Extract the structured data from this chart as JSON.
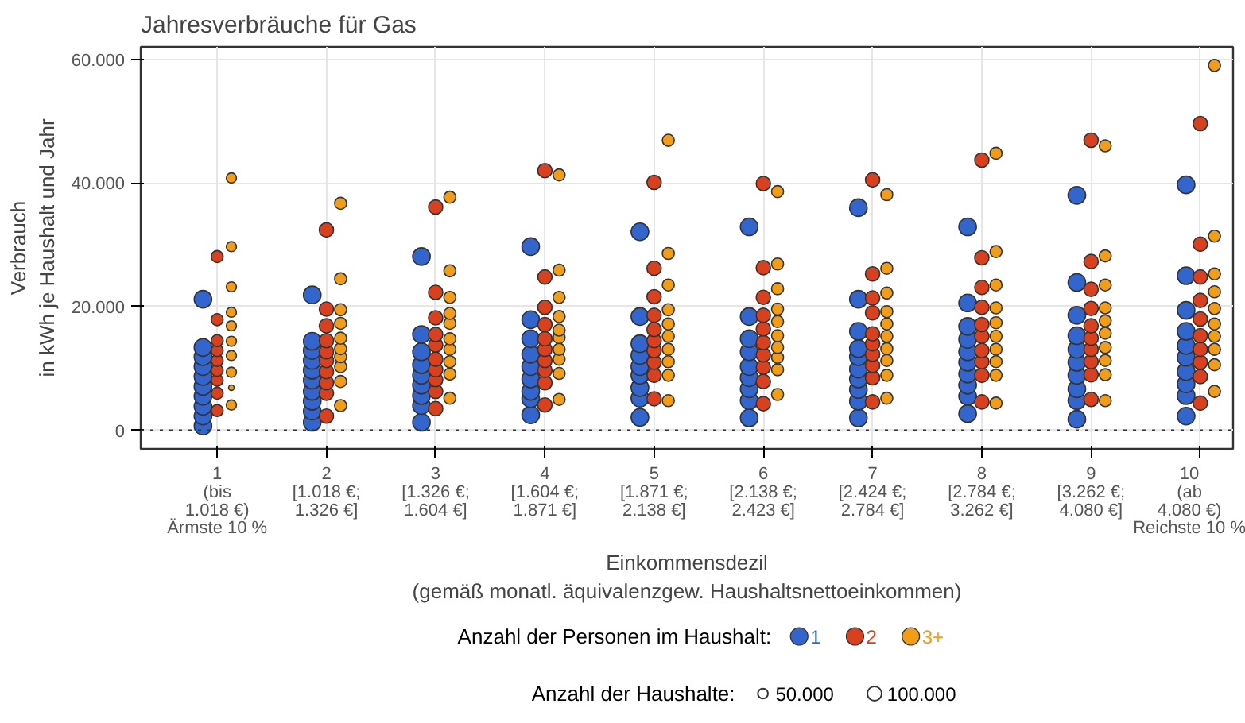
{
  "chart_data": {
    "type": "bubble",
    "title": "Jahresverbräuche für Gas",
    "xlabel": "Einkommensdezil\n(gemäß monatl. äquivalenzgew. Haushaltsnettoeinkommen)",
    "ylabel": "Verbrauch\nin kWh je Haushalt und Jahr",
    "legend_title": "Anzahl der Personen im Haushalt:",
    "annotations": [
      "Anzahl der Haushalte:"
    ],
    "categories": [
      "1\n(bis\n1.018 €)\nÄrmste 10 %",
      "2\n[1.018 €;\n1.326 €]",
      "3\n[1.326 €;\n1.604 €]",
      "4\n[1.604 €;\n1.871 €]",
      "5\n[1.871 €;\n2.138 €]",
      "6\n[2.138 €;\n2.423 €]",
      "7\n[2.424 €;\n2.784 €]",
      "8\n[2.784 €;\n3.262 €]",
      "9\n[3.262 €;\n4.080 €]",
      "10\n(ab\n4.080 €)\nReichste 10 %"
    ],
    "ylim": [
      -3000,
      62000
    ],
    "yticks": [
      0,
      {
        "value": 20000,
        "label": "20.000"
      },
      {
        "value": 40000,
        "label": "40.000"
      },
      {
        "value": 60000,
        "label": "60.000"
      }
    ],
    "grid": true,
    "legend": "bottom",
    "ref_lines": [
      {
        "axis": "y",
        "value": 0,
        "color": "#333333",
        "line_style": "dotted"
      }
    ],
    "size_legend": [
      {
        "value": 50000,
        "label": "50.000"
      },
      {
        "value": 100000,
        "label": "100.000"
      }
    ],
    "series": [
      {
        "name": "1",
        "color": "#3366cc",
        "x": [
          "1\n(bis\n1.018 €)\nÄrmste 10 %",
          "1\n(bis\n1.018 €)\nÄrmste 10 %",
          "1\n(bis\n1.018 €)\nÄrmste 10 %",
          "1\n(bis\n1.018 €)\nÄrmste 10 %",
          "1\n(bis\n1.018 €)\nÄrmste 10 %",
          "1\n(bis\n1.018 €)\nÄrmste 10 %",
          "1\n(bis\n1.018 €)\nÄrmste 10 %",
          "1\n(bis\n1.018 €)\nÄrmste 10 %",
          "1\n(bis\n1.018 €)\nÄrmste 10 %",
          "1\n(bis\n1.018 €)\nÄrmste 10 %",
          "2\n[1.018 €;\n1.326 €]",
          "2\n[1.018 €;\n1.326 €]",
          "2\n[1.018 €;\n1.326 €]",
          "2\n[1.018 €;\n1.326 €]",
          "2\n[1.018 €;\n1.326 €]",
          "2\n[1.018 €;\n1.326 €]",
          "2\n[1.018 €;\n1.326 €]",
          "2\n[1.018 €;\n1.326 €]",
          "2\n[1.018 €;\n1.326 €]",
          "2\n[1.018 €;\n1.326 €]",
          "3\n[1.326 €;\n1.604 €]",
          "3\n[1.326 €;\n1.604 €]",
          "3\n[1.326 €;\n1.604 €]",
          "3\n[1.326 €;\n1.604 €]",
          "3\n[1.326 €;\n1.604 €]",
          "3\n[1.326 €;\n1.604 €]",
          "3\n[1.326 €;\n1.604 €]",
          "3\n[1.326 €;\n1.604 €]",
          "3\n[1.326 €;\n1.604 €]",
          "4\n[1.604 €;\n1.871 €]",
          "4\n[1.604 €;\n1.871 €]",
          "4\n[1.604 €;\n1.871 €]",
          "4\n[1.604 €;\n1.871 €]",
          "4\n[1.604 €;\n1.871 €]",
          "4\n[1.604 €;\n1.871 €]",
          "4\n[1.604 €;\n1.871 €]",
          "4\n[1.604 €;\n1.871 €]",
          "4\n[1.604 €;\n1.871 €]",
          "5\n[1.871 €;\n2.138 €]",
          "5\n[1.871 €;\n2.138 €]",
          "5\n[1.871 €;\n2.138 €]",
          "5\n[1.871 €;\n2.138 €]",
          "5\n[1.871 €;\n2.138 €]",
          "5\n[1.871 €;\n2.138 €]",
          "5\n[1.871 €;\n2.138 €]",
          "5\n[1.871 €;\n2.138 €]",
          "5\n[1.871 €;\n2.138 €]",
          "6\n[2.138 €;\n2.423 €]",
          "6\n[2.138 €;\n2.423 €]",
          "6\n[2.138 €;\n2.423 €]",
          "6\n[2.138 €;\n2.423 €]",
          "6\n[2.138 €;\n2.423 €]",
          "6\n[2.138 €;\n2.423 €]",
          "6\n[2.138 €;\n2.423 €]",
          "6\n[2.138 €;\n2.423 €]",
          "6\n[2.138 €;\n2.423 €]",
          "7\n[2.424 €;\n2.784 €]",
          "7\n[2.424 €;\n2.784 €]",
          "7\n[2.424 €;\n2.784 €]",
          "7\n[2.424 €;\n2.784 €]",
          "7\n[2.424 €;\n2.784 €]",
          "7\n[2.424 €;\n2.784 €]",
          "7\n[2.424 €;\n2.784 €]",
          "7\n[2.424 €;\n2.784 €]",
          "7\n[2.424 €;\n2.784 €]",
          "7\n[2.424 €;\n2.784 €]",
          "8\n[2.784 €;\n3.262 €]",
          "8\n[2.784 €;\n3.262 €]",
          "8\n[2.784 €;\n3.262 €]",
          "8\n[2.784 €;\n3.262 €]",
          "8\n[2.784 €;\n3.262 €]",
          "8\n[2.784 €;\n3.262 €]",
          "8\n[2.784 €;\n3.262 €]",
          "8\n[2.784 €;\n3.262 €]",
          "8\n[2.784 €;\n3.262 €]",
          "8\n[2.784 €;\n3.262 €]",
          "9\n[3.262 €;\n4.080 €]",
          "9\n[3.262 €;\n4.080 €]",
          "9\n[3.262 €;\n4.080 €]",
          "9\n[3.262 €;\n4.080 €]",
          "9\n[3.262 €;\n4.080 €]",
          "9\n[3.262 €;\n4.080 €]",
          "9\n[3.262 €;\n4.080 €]",
          "9\n[3.262 €;\n4.080 €]",
          "9\n[3.262 €;\n4.080 €]",
          "9\n[3.262 €;\n4.080 €]",
          "10\n(ab\n4.080 €)\nReichste 10 %",
          "10\n(ab\n4.080 €)\nReichste 10 %",
          "10\n(ab\n4.080 €)\nReichste 10 %",
          "10\n(ab\n4.080 €)\nReichste 10 %",
          "10\n(ab\n4.080 €)\nReichste 10 %",
          "10\n(ab\n4.080 €)\nReichste 10 %",
          "10\n(ab\n4.080 €)\nReichste 10 %",
          "10\n(ab\n4.080 €)\nReichste 10 %",
          "10\n(ab\n4.080 €)\nReichste 10 %",
          "10\n(ab\n4.080 €)\nReichste 10 %"
        ],
        "values": [
          700,
          2300,
          3900,
          5500,
          7100,
          8700,
          10300,
          11900,
          13400,
          21200,
          1300,
          3100,
          4700,
          6300,
          8100,
          9700,
          11300,
          12900,
          14400,
          21900,
          1300,
          4000,
          5600,
          7300,
          8900,
          10600,
          12700,
          15500,
          28100,
          2500,
          5100,
          6300,
          8300,
          10300,
          12300,
          14800,
          17900,
          29700,
          2100,
          5200,
          6900,
          8900,
          10300,
          12100,
          14000,
          18400,
          32100,
          2000,
          4800,
          6700,
          8500,
          10300,
          12700,
          14800,
          18400,
          32900,
          2000,
          4700,
          6600,
          8300,
          9900,
          11900,
          13200,
          16000,
          21200,
          36000,
          2700,
          5500,
          7300,
          9100,
          11000,
          12700,
          14700,
          16800,
          20600,
          32900,
          1800,
          4800,
          6700,
          8900,
          11000,
          13100,
          15300,
          18600,
          23900,
          38000,
          2300,
          5600,
          7500,
          9500,
          11800,
          13700,
          16000,
          19400,
          25000,
          39700
        ],
        "sizes": [
          150000,
          150000,
          150000,
          150000,
          150000,
          150000,
          150000,
          150000,
          150000,
          150000,
          150000,
          150000,
          150000,
          150000,
          150000,
          150000,
          150000,
          150000,
          150000,
          150000,
          150000,
          150000,
          150000,
          150000,
          150000,
          150000,
          150000,
          150000,
          150000,
          150000,
          150000,
          150000,
          150000,
          150000,
          150000,
          150000,
          150000,
          150000,
          150000,
          150000,
          150000,
          150000,
          150000,
          150000,
          150000,
          150000,
          150000,
          150000,
          150000,
          150000,
          150000,
          150000,
          150000,
          150000,
          150000,
          150000,
          150000,
          150000,
          150000,
          150000,
          150000,
          150000,
          150000,
          150000,
          150000,
          150000,
          150000,
          150000,
          150000,
          150000,
          150000,
          150000,
          150000,
          150000,
          150000,
          150000,
          150000,
          150000,
          150000,
          150000,
          150000,
          150000,
          150000,
          150000,
          150000,
          150000,
          150000,
          150000,
          150000,
          150000,
          150000,
          150000,
          150000,
          150000,
          150000,
          150000
        ]
      },
      {
        "name": "2",
        "color": "#d9411e",
        "x": [
          "1\n(bis\n1.018 €)\nÄrmste 10 %",
          "1\n(bis\n1.018 €)\nÄrmste 10 %",
          "1\n(bis\n1.018 €)\nÄrmste 10 %",
          "1\n(bis\n1.018 €)\nÄrmste 10 %",
          "1\n(bis\n1.018 €)\nÄrmste 10 %",
          "1\n(bis\n1.018 €)\nÄrmste 10 %",
          "1\n(bis\n1.018 €)\nÄrmste 10 %",
          "1\n(bis\n1.018 €)\nÄrmste 10 %",
          "1\n(bis\n1.018 €)\nÄrmste 10 %",
          "2\n[1.018 €;\n1.326 €]",
          "2\n[1.018 €;\n1.326 €]",
          "2\n[1.018 €;\n1.326 €]",
          "2\n[1.018 €;\n1.326 €]",
          "2\n[1.018 €;\n1.326 €]",
          "2\n[1.018 €;\n1.326 €]",
          "2\n[1.018 €;\n1.326 €]",
          "2\n[1.018 €;\n1.326 €]",
          "2\n[1.018 €;\n1.326 €]",
          "2\n[1.018 €;\n1.326 €]",
          "3\n[1.326 €;\n1.604 €]",
          "3\n[1.326 €;\n1.604 €]",
          "3\n[1.326 €;\n1.604 €]",
          "3\n[1.326 €;\n1.604 €]",
          "3\n[1.326 €;\n1.604 €]",
          "3\n[1.326 €;\n1.604 €]",
          "3\n[1.326 €;\n1.604 €]",
          "3\n[1.326 €;\n1.604 €]",
          "3\n[1.326 €;\n1.604 €]",
          "3\n[1.326 €;\n1.604 €]",
          "4\n[1.604 €;\n1.871 €]",
          "4\n[1.604 €;\n1.871 €]",
          "4\n[1.604 €;\n1.871 €]",
          "4\n[1.604 €;\n1.871 €]",
          "4\n[1.604 €;\n1.871 €]",
          "4\n[1.604 €;\n1.871 €]",
          "4\n[1.604 €;\n1.871 €]",
          "4\n[1.604 €;\n1.871 €]",
          "4\n[1.604 €;\n1.871 €]",
          "4\n[1.604 €;\n1.871 €]",
          "5\n[1.871 €;\n2.138 €]",
          "5\n[1.871 €;\n2.138 €]",
          "5\n[1.871 €;\n2.138 €]",
          "5\n[1.871 €;\n2.138 €]",
          "5\n[1.871 €;\n2.138 €]",
          "5\n[1.871 €;\n2.138 €]",
          "5\n[1.871 €;\n2.138 €]",
          "5\n[1.871 €;\n2.138 €]",
          "5\n[1.871 €;\n2.138 €]",
          "5\n[1.871 €;\n2.138 €]",
          "6\n[2.138 €;\n2.423 €]",
          "6\n[2.138 €;\n2.423 €]",
          "6\n[2.138 €;\n2.423 €]",
          "6\n[2.138 €;\n2.423 €]",
          "6\n[2.138 €;\n2.423 €]",
          "6\n[2.138 €;\n2.423 €]",
          "6\n[2.138 €;\n2.423 €]",
          "6\n[2.138 €;\n2.423 €]",
          "6\n[2.138 €;\n2.423 €]",
          "6\n[2.138 €;\n2.423 €]",
          "7\n[2.424 €;\n2.784 €]",
          "7\n[2.424 €;\n2.784 €]",
          "7\n[2.424 €;\n2.784 €]",
          "7\n[2.424 €;\n2.784 €]",
          "7\n[2.424 €;\n2.784 €]",
          "7\n[2.424 €;\n2.784 €]",
          "7\n[2.424 €;\n2.784 €]",
          "7\n[2.424 €;\n2.784 €]",
          "7\n[2.424 €;\n2.784 €]",
          "7\n[2.424 €;\n2.784 €]",
          "8\n[2.784 €;\n3.262 €]",
          "8\n[2.784 €;\n3.262 €]",
          "8\n[2.784 €;\n3.262 €]",
          "8\n[2.784 €;\n3.262 €]",
          "8\n[2.784 €;\n3.262 €]",
          "8\n[2.784 €;\n3.262 €]",
          "8\n[2.784 €;\n3.262 €]",
          "8\n[2.784 €;\n3.262 €]",
          "8\n[2.784 €;\n3.262 €]",
          "8\n[2.784 €;\n3.262 €]",
          "9\n[3.262 €;\n4.080 €]",
          "9\n[3.262 €;\n4.080 €]",
          "9\n[3.262 €;\n4.080 €]",
          "9\n[3.262 €;\n4.080 €]",
          "9\n[3.262 €;\n4.080 €]",
          "9\n[3.262 €;\n4.080 €]",
          "9\n[3.262 €;\n4.080 €]",
          "9\n[3.262 €;\n4.080 €]",
          "9\n[3.262 €;\n4.080 €]",
          "9\n[3.262 €;\n4.080 €]",
          "10\n(ab\n4.080 €)\nReichste 10 %",
          "10\n(ab\n4.080 €)\nReichste 10 %",
          "10\n(ab\n4.080 €)\nReichste 10 %",
          "10\n(ab\n4.080 €)\nReichste 10 %",
          "10\n(ab\n4.080 €)\nReichste 10 %",
          "10\n(ab\n4.080 €)\nReichste 10 %",
          "10\n(ab\n4.080 €)\nReichste 10 %",
          "10\n(ab\n4.080 €)\nReichste 10 %",
          "10\n(ab\n4.080 €)\nReichste 10 %",
          "10\n(ab\n4.080 €)\nReichste 10 %"
        ],
        "values": [
          3200,
          6000,
          8100,
          9700,
          11300,
          12900,
          14500,
          17900,
          28100,
          2300,
          6000,
          7700,
          9500,
          11300,
          12700,
          14500,
          16900,
          19600,
          32400,
          3500,
          6300,
          8200,
          9800,
          11500,
          13800,
          15500,
          18200,
          22300,
          36100,
          4100,
          7700,
          9700,
          11300,
          13100,
          14800,
          17100,
          19900,
          24800,
          42000,
          5100,
          8900,
          11000,
          12900,
          14500,
          16300,
          18600,
          21600,
          26200,
          40100,
          4300,
          7900,
          10200,
          12200,
          14200,
          16400,
          18600,
          21500,
          26300,
          39900,
          4600,
          8500,
          10500,
          12300,
          14000,
          15600,
          19000,
          21400,
          25300,
          40500,
          4600,
          8900,
          11100,
          12900,
          15200,
          17100,
          19900,
          23100,
          27900,
          43700,
          5000,
          9000,
          11100,
          13100,
          14900,
          16900,
          19700,
          22800,
          27300,
          46900,
          4400,
          8700,
          11000,
          13100,
          15300,
          18000,
          21000,
          24800,
          30100,
          49600
        ],
        "sizes": [
          70000,
          70000,
          70000,
          70000,
          70000,
          70000,
          70000,
          70000,
          70000,
          100000,
          100000,
          100000,
          100000,
          100000,
          100000,
          100000,
          100000,
          100000,
          100000,
          100000,
          100000,
          100000,
          100000,
          100000,
          100000,
          100000,
          100000,
          100000,
          100000,
          100000,
          100000,
          100000,
          100000,
          100000,
          100000,
          100000,
          100000,
          100000,
          100000,
          100000,
          100000,
          100000,
          100000,
          100000,
          100000,
          100000,
          100000,
          100000,
          100000,
          100000,
          100000,
          100000,
          100000,
          100000,
          100000,
          100000,
          100000,
          100000,
          100000,
          100000,
          100000,
          100000,
          100000,
          100000,
          100000,
          100000,
          100000,
          100000,
          100000,
          100000,
          100000,
          100000,
          100000,
          100000,
          100000,
          100000,
          100000,
          100000,
          100000,
          100000,
          100000,
          100000,
          100000,
          100000,
          100000,
          100000,
          100000,
          100000,
          100000,
          100000,
          100000,
          100000,
          100000,
          100000,
          100000,
          100000,
          100000,
          100000,
          100000
        ]
      },
      {
        "name": "3+",
        "color": "#f29d16",
        "x": [
          "1\n(bis\n1.018 €)\nÄrmste 10 %",
          "1\n(bis\n1.018 €)\nÄrmste 10 %",
          "1\n(bis\n1.018 €)\nÄrmste 10 %",
          "1\n(bis\n1.018 €)\nÄrmste 10 %",
          "1\n(bis\n1.018 €)\nÄrmste 10 %",
          "1\n(bis\n1.018 €)\nÄrmste 10 %",
          "1\n(bis\n1.018 €)\nÄrmste 10 %",
          "1\n(bis\n1.018 €)\nÄrmste 10 %",
          "1\n(bis\n1.018 €)\nÄrmste 10 %",
          "1\n(bis\n1.018 €)\nÄrmste 10 %",
          "2\n[1.018 €;\n1.326 €]",
          "2\n[1.018 €;\n1.326 €]",
          "2\n[1.018 €;\n1.326 €]",
          "2\n[1.018 €;\n1.326 €]",
          "2\n[1.018 €;\n1.326 €]",
          "2\n[1.018 €;\n1.326 €]",
          "2\n[1.018 €;\n1.326 €]",
          "2\n[1.018 €;\n1.326 €]",
          "2\n[1.018 €;\n1.326 €]",
          "2\n[1.018 €;\n1.326 €]",
          "3\n[1.326 €;\n1.604 €]",
          "3\n[1.326 €;\n1.604 €]",
          "3\n[1.326 €;\n1.604 €]",
          "3\n[1.326 €;\n1.604 €]",
          "3\n[1.326 €;\n1.604 €]",
          "3\n[1.326 €;\n1.604 €]",
          "3\n[1.326 €;\n1.604 €]",
          "3\n[1.326 €;\n1.604 €]",
          "3\n[1.326 €;\n1.604 €]",
          "3\n[1.326 €;\n1.604 €]",
          "4\n[1.604 €;\n1.871 €]",
          "4\n[1.604 €;\n1.871 €]",
          "4\n[1.604 €;\n1.871 €]",
          "4\n[1.604 €;\n1.871 €]",
          "4\n[1.604 €;\n1.871 €]",
          "4\n[1.604 €;\n1.871 €]",
          "4\n[1.604 €;\n1.871 €]",
          "4\n[1.604 €;\n1.871 €]",
          "4\n[1.604 €;\n1.871 €]",
          "4\n[1.604 €;\n1.871 €]",
          "5\n[1.871 €;\n2.138 €]",
          "5\n[1.871 €;\n2.138 €]",
          "5\n[1.871 €;\n2.138 €]",
          "5\n[1.871 €;\n2.138 €]",
          "5\n[1.871 €;\n2.138 €]",
          "5\n[1.871 €;\n2.138 €]",
          "5\n[1.871 €;\n2.138 €]",
          "5\n[1.871 €;\n2.138 €]",
          "5\n[1.871 €;\n2.138 €]",
          "5\n[1.871 €;\n2.138 €]",
          "6\n[2.138 €;\n2.423 €]",
          "6\n[2.138 €;\n2.423 €]",
          "6\n[2.138 €;\n2.423 €]",
          "6\n[2.138 €;\n2.423 €]",
          "6\n[2.138 €;\n2.423 €]",
          "6\n[2.138 €;\n2.423 €]",
          "6\n[2.138 €;\n2.423 €]",
          "6\n[2.138 €;\n2.423 €]",
          "6\n[2.138 €;\n2.423 €]",
          "6\n[2.138 €;\n2.423 €]",
          "7\n[2.424 €;\n2.784 €]",
          "7\n[2.424 €;\n2.784 €]",
          "7\n[2.424 €;\n2.784 €]",
          "7\n[2.424 €;\n2.784 €]",
          "7\n[2.424 €;\n2.784 €]",
          "7\n[2.424 €;\n2.784 €]",
          "7\n[2.424 €;\n2.784 €]",
          "7\n[2.424 €;\n2.784 €]",
          "7\n[2.424 €;\n2.784 €]",
          "7\n[2.424 €;\n2.784 €]",
          "8\n[2.784 €;\n3.262 €]",
          "8\n[2.784 €;\n3.262 €]",
          "8\n[2.784 €;\n3.262 €]",
          "8\n[2.784 €;\n3.262 €]",
          "8\n[2.784 €;\n3.262 €]",
          "8\n[2.784 €;\n3.262 €]",
          "8\n[2.784 €;\n3.262 €]",
          "8\n[2.784 €;\n3.262 €]",
          "8\n[2.784 €;\n3.262 €]",
          "8\n[2.784 €;\n3.262 €]",
          "9\n[3.262 €;\n4.080 €]",
          "9\n[3.262 €;\n4.080 €]",
          "9\n[3.262 €;\n4.080 €]",
          "9\n[3.262 €;\n4.080 €]",
          "9\n[3.262 €;\n4.080 €]",
          "9\n[3.262 €;\n4.080 €]",
          "9\n[3.262 €;\n4.080 €]",
          "9\n[3.262 €;\n4.080 €]",
          "9\n[3.262 €;\n4.080 €]",
          "9\n[3.262 €;\n4.080 €]",
          "10\n(ab\n4.080 €)\nReichste 10 %",
          "10\n(ab\n4.080 €)\nReichste 10 %",
          "10\n(ab\n4.080 €)\nReichste 10 %",
          "10\n(ab\n4.080 €)\nReichste 10 %",
          "10\n(ab\n4.080 €)\nReichste 10 %",
          "10\n(ab\n4.080 €)\nReichste 10 %",
          "10\n(ab\n4.080 €)\nReichste 10 %",
          "10\n(ab\n4.080 €)\nReichste 10 %",
          "10\n(ab\n4.080 €)\nReichste 10 %",
          "10\n(ab\n4.080 €)\nReichste 10 %"
        ],
        "values": [
          4100,
          6900,
          9400,
          12100,
          14400,
          16900,
          19100,
          23200,
          29700,
          40800,
          4000,
          7900,
          10300,
          11900,
          13200,
          14900,
          17300,
          19500,
          24500,
          36700,
          5200,
          9100,
          11100,
          13100,
          14800,
          17300,
          18900,
          21500,
          25800,
          37700,
          5000,
          9200,
          11500,
          13100,
          15000,
          16200,
          18400,
          21500,
          25900,
          41300,
          4800,
          8900,
          11100,
          13100,
          15200,
          17200,
          19500,
          23500,
          28600,
          46900,
          5800,
          9800,
          11800,
          13400,
          15300,
          17600,
          19600,
          22900,
          26900,
          38600,
          5200,
          8900,
          11300,
          13200,
          15200,
          17200,
          19200,
          22200,
          26200,
          38100,
          4400,
          8900,
          11100,
          13100,
          15200,
          17400,
          19800,
          23500,
          28900,
          44800,
          4800,
          9000,
          11300,
          13400,
          15700,
          17700,
          19800,
          23500,
          28200,
          46000,
          6300,
          10600,
          13100,
          15200,
          17200,
          19700,
          22400,
          25300,
          31400,
          59000
        ],
        "sizes": [
          50000,
          15000,
          50000,
          50000,
          50000,
          50000,
          50000,
          50000,
          50000,
          50000,
          70000,
          70000,
          70000,
          70000,
          70000,
          70000,
          70000,
          70000,
          70000,
          70000,
          70000,
          70000,
          70000,
          70000,
          70000,
          70000,
          70000,
          70000,
          70000,
          70000,
          70000,
          70000,
          70000,
          70000,
          70000,
          70000,
          70000,
          70000,
          70000,
          70000,
          70000,
          70000,
          70000,
          70000,
          70000,
          70000,
          70000,
          70000,
          70000,
          70000,
          70000,
          70000,
          70000,
          70000,
          70000,
          70000,
          70000,
          70000,
          70000,
          70000,
          70000,
          70000,
          70000,
          70000,
          70000,
          70000,
          70000,
          70000,
          70000,
          70000,
          70000,
          70000,
          70000,
          70000,
          70000,
          70000,
          70000,
          70000,
          70000,
          70000,
          70000,
          70000,
          70000,
          70000,
          70000,
          70000,
          70000,
          70000,
          70000,
          70000,
          70000,
          70000,
          70000,
          70000,
          70000,
          70000,
          70000,
          70000,
          70000,
          70000
        ]
      }
    ]
  }
}
